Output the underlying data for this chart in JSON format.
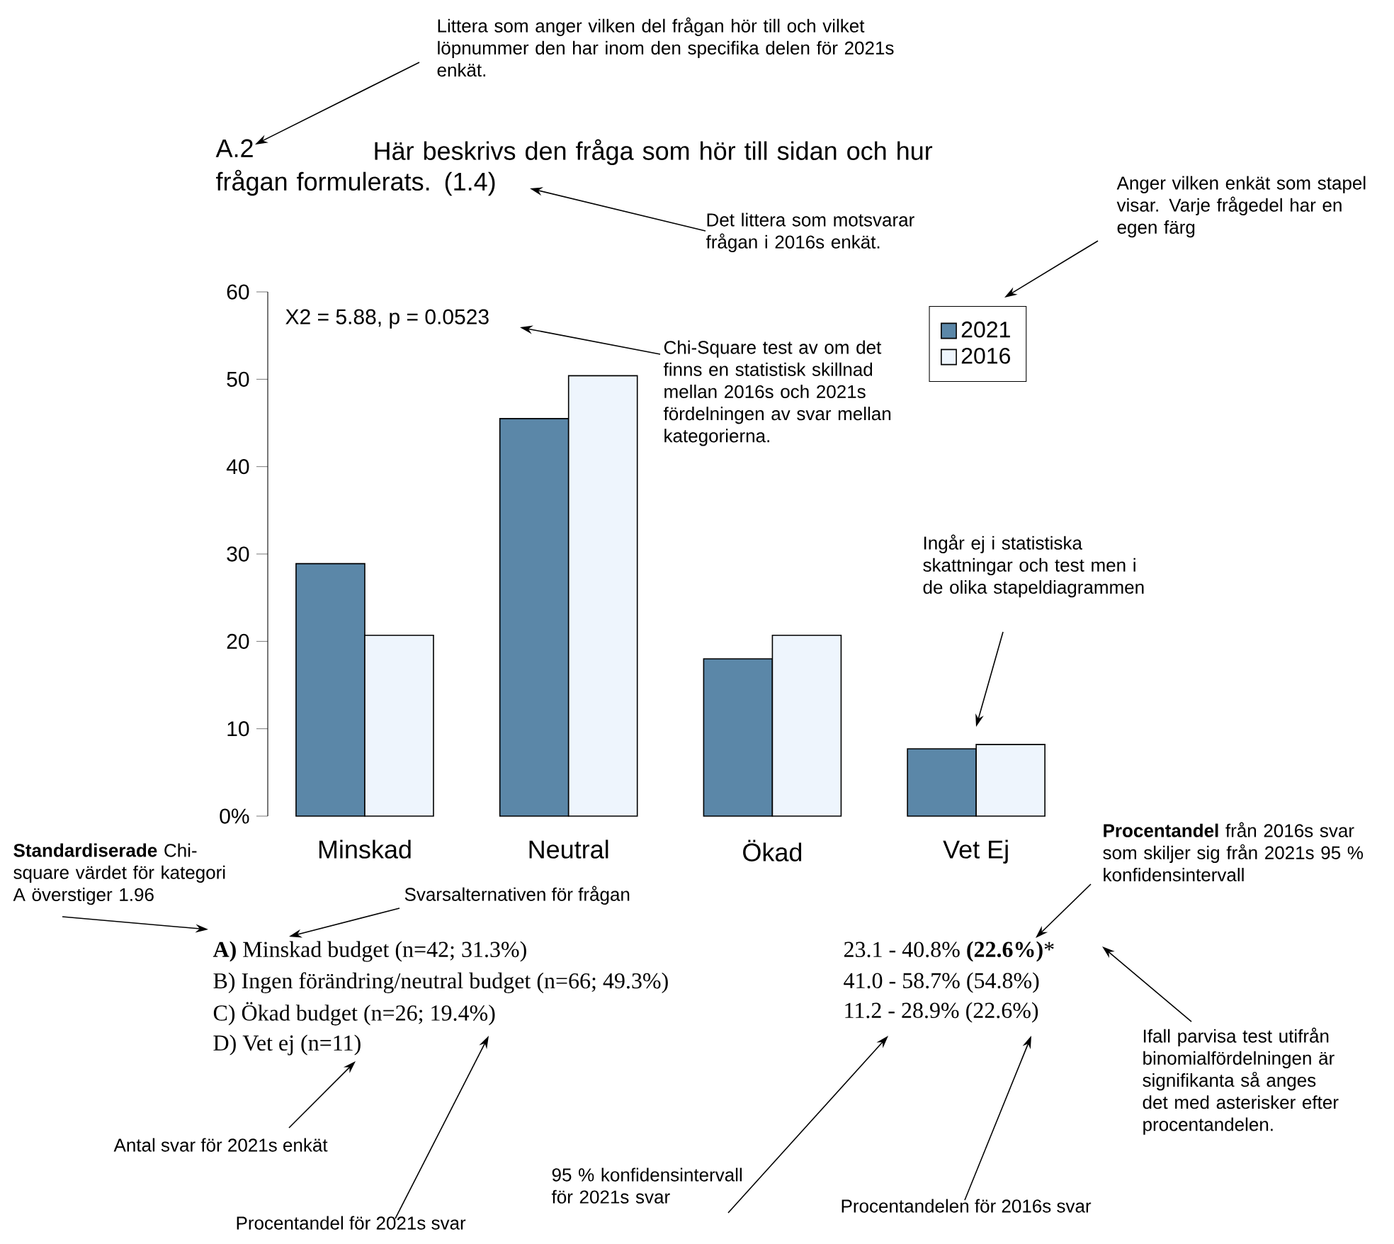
{
  "chart_data": {
    "type": "bar",
    "title": "Här beskrivs den fråga som hör till sidan och hur frågan formulerats. (1.4)",
    "categories": [
      "Minskad",
      "Neutral",
      "Ökad",
      "Vet Ej"
    ],
    "series": [
      {
        "name": "2021",
        "color": "#5b87a8",
        "values": [
          28.9,
          45.5,
          18.0,
          7.7
        ]
      },
      {
        "name": "2016",
        "color": "#eef5fd",
        "values": [
          20.7,
          50.4,
          20.7,
          8.2
        ]
      }
    ],
    "ylim": [
      0,
      60
    ],
    "yticks": [
      {
        "value": 0,
        "label": "0%"
      },
      10,
      20,
      30,
      40,
      50,
      60
    ],
    "legend": "top right",
    "annotations": [
      "Littera som anger vilken del frågan hör till och vilket löpnummer den har inom den specifika delen för 2021s enkät.",
      "A.2",
      "Det littera som motsvarar frågan i 2016s enkät.",
      "Anger vilken enkät som stapel visar. Varje frågedel har en egen färg",
      "X2 = 5.88, p = 0.0523",
      "Chi-Square test av om det finns en statistisk skillnad mellan 2016s och 2021s fördelningen av svar mellan kategorierna.",
      "Ingår ej i statistiska skattningar och test men i de olika stapeldiagrammen",
      "**Standardiserade** Chi-square värdet för kategori A överstiger 1.96",
      "Svarsalternativen för frågan",
      "**Procentandel** från 2016s svar som skiljer sig från 2021s 95 % konfidensintervall",
      "**A)** Minskad budget (n=42; 31.3%)",
      "B) Ingen förändring/neutral budget (n=66; 49.3%)",
      "C) Ökad budget (n=26; 19.4%)",
      "D) Vet ej (n=11)",
      "23.1 - 40.8% **(22.6%)***",
      "41.0 - 58.7% (54.8%)",
      "11.2 - 28.9% (22.6%)",
      "Ifall parvisa test utifrån binomialfördelningen är signifikanta så anges det med asterisker efter procentandelen.",
      "Antal svar för 2021s enkät",
      "95 % konfidensintervall för 2021s svar",
      "Procentandel för 2021s svar",
      "Procentandelen för 2016s svar"
    ]
  }
}
